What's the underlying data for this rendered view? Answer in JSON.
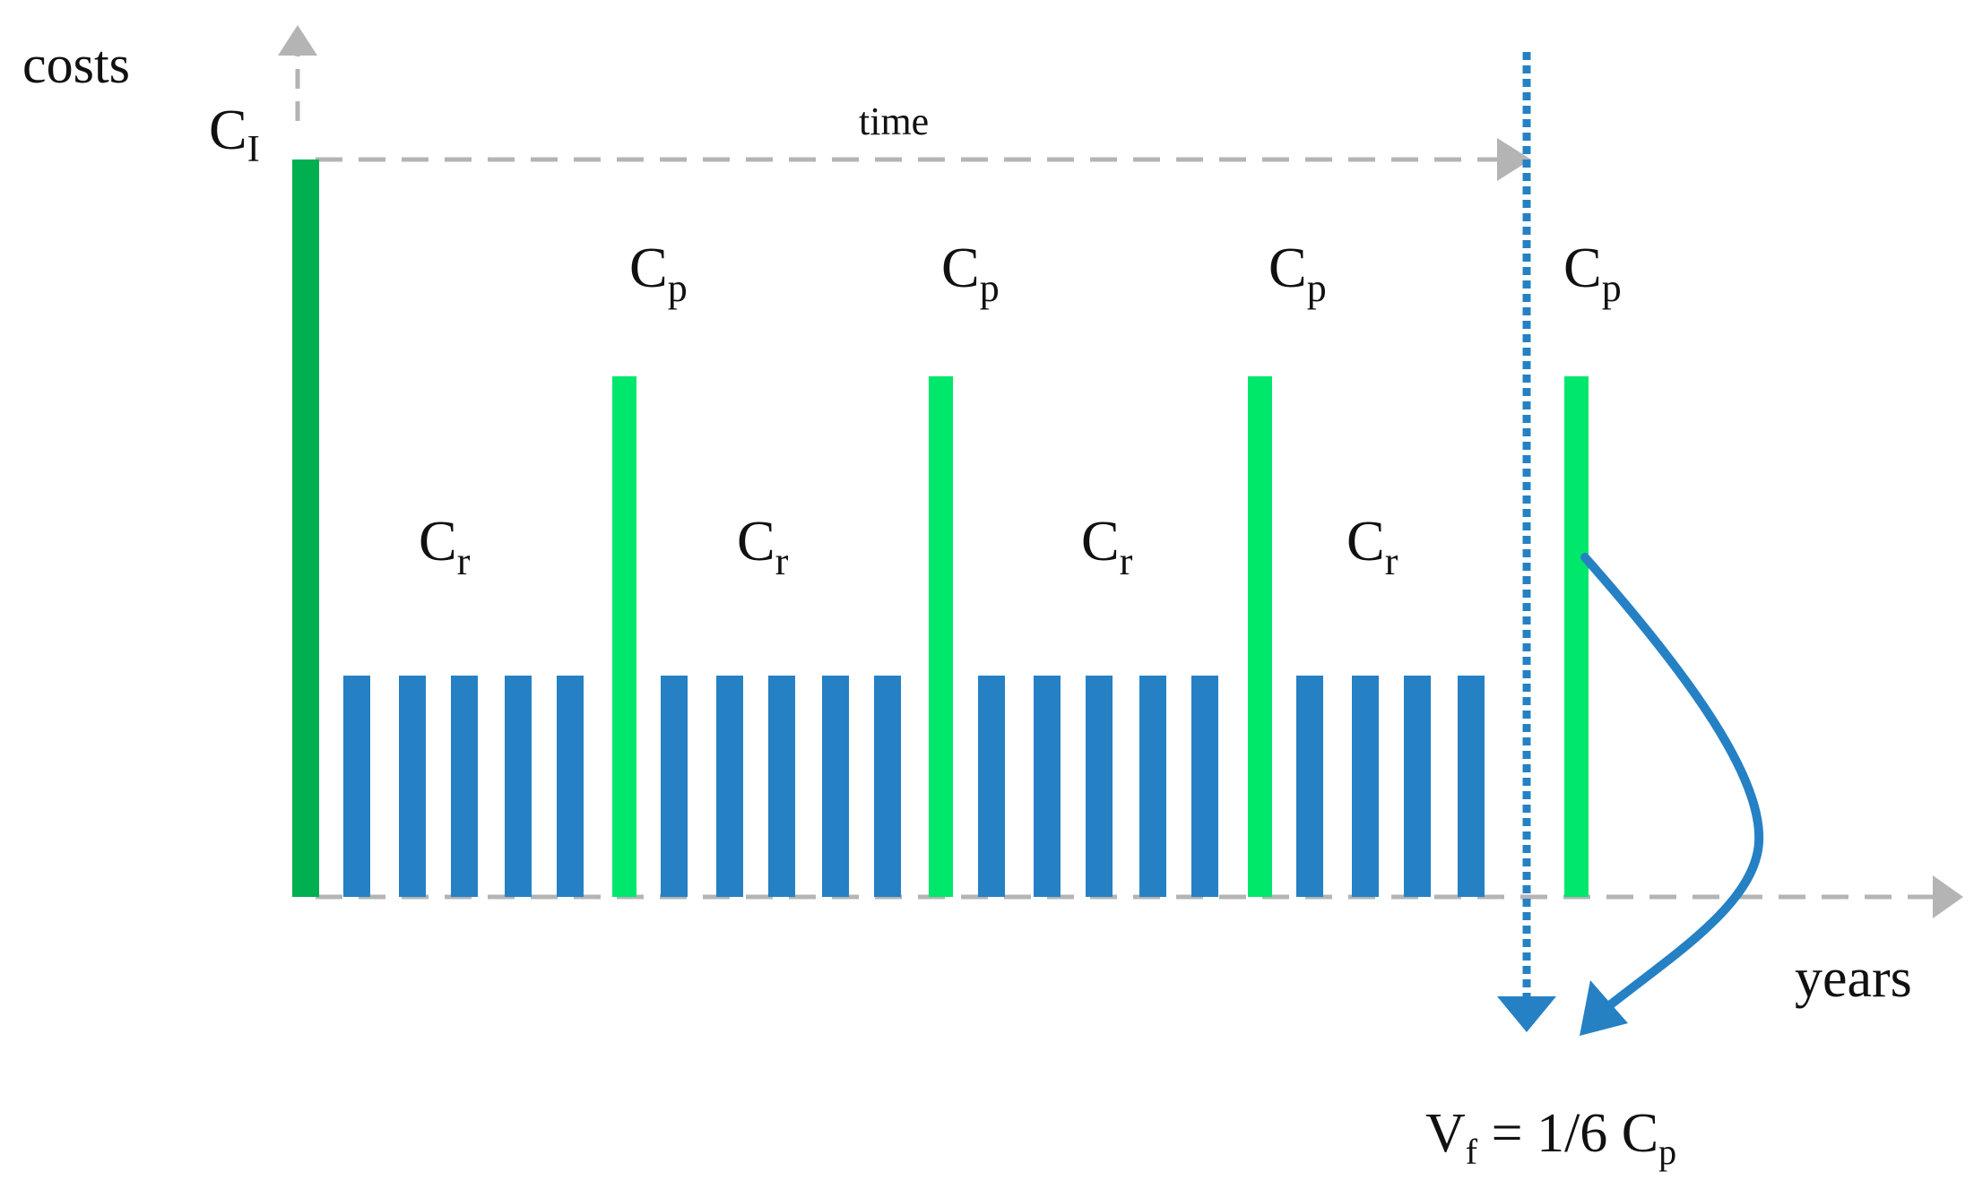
{
  "labels": {
    "y_axis": "costs",
    "x_axis": "years",
    "time": "time",
    "initial_cost": {
      "main": "C",
      "sub": "I"
    },
    "periodic_cost": {
      "main": "C",
      "sub": "p"
    },
    "recurring_cost": {
      "main": "C",
      "sub": "r"
    },
    "final_value": {
      "prefix": "V",
      "sub": "f",
      "mid": " = 1/6 C",
      "sub2": "p"
    }
  },
  "colors": {
    "initial": "#00b050",
    "periodic": "#00e86c",
    "recurring": "#2581c4",
    "axis": "#b4b4b4",
    "horizon": "#2581c4"
  },
  "structure": {
    "initial_bars": 1,
    "periodic_bars": 4,
    "recurring_groups": [
      5,
      5,
      5,
      4
    ],
    "horizon_between_periodic": [
      3,
      4
    ]
  }
}
